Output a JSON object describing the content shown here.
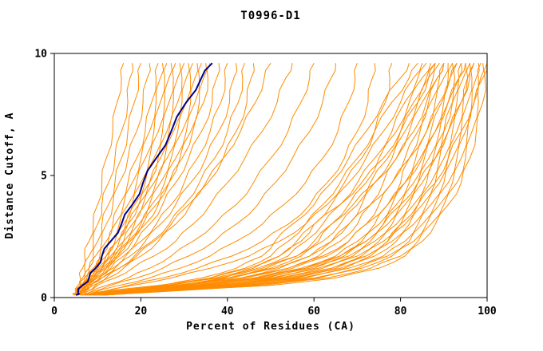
{
  "chart_data": {
    "type": "line",
    "title": "T0996-D1",
    "xlabel": "Percent of Residues (CA)",
    "ylabel": "Distance Cutoff, A",
    "xlim": [
      0,
      100
    ],
    "ylim": [
      0,
      10
    ],
    "xticks": [
      0,
      20,
      40,
      60,
      80,
      100
    ],
    "yticks": [
      0,
      5,
      10
    ],
    "grid": false,
    "legend_position": "none",
    "line_color": "#ff8c00",
    "highlight_color": "#00008b",
    "axis_color": "#000000",
    "y_values": [
      0.1,
      0.2,
      0.5,
      0.8,
      1.2,
      1.7,
      2.3,
      3.0,
      3.8,
      4.7,
      5.7,
      6.8,
      8.0,
      9.0,
      9.6
    ],
    "models_x": [
      [
        4.5,
        5,
        5.5,
        6,
        6.5,
        7,
        8,
        9,
        10,
        11,
        12,
        13.5,
        14.5,
        15.5,
        16
      ],
      [
        4.5,
        5,
        6,
        6.5,
        7,
        8,
        9,
        10,
        11,
        12.5,
        14,
        15.5,
        17,
        17.5,
        18
      ],
      [
        5,
        5.5,
        6,
        7,
        8,
        9,
        10,
        11,
        12.5,
        14,
        15.5,
        17,
        18.5,
        19.5,
        20
      ],
      [
        4.5,
        5,
        6,
        7,
        8,
        9.5,
        11,
        12,
        13.5,
        15,
        17,
        19,
        20.5,
        21.5,
        22
      ],
      [
        5.5,
        6,
        6.5,
        7.5,
        9,
        10.5,
        12,
        13.5,
        15,
        17,
        19,
        21,
        22.5,
        23.5,
        24
      ],
      [
        5,
        5.5,
        6.5,
        8,
        9.5,
        11,
        12.5,
        14,
        16,
        18,
        20,
        22,
        23.5,
        24.5,
        25
      ],
      [
        4.5,
        5,
        6,
        7.5,
        9,
        11,
        13,
        15,
        17,
        19,
        21,
        23,
        24.5,
        25.5,
        26
      ],
      [
        5.5,
        6,
        7,
        8.5,
        10,
        12,
        14,
        16,
        18,
        20,
        22,
        24,
        25.5,
        26.5,
        27
      ],
      [
        5,
        5.5,
        7,
        8.5,
        10.5,
        12.5,
        14.5,
        16.5,
        18.5,
        21,
        23,
        25,
        26.5,
        27.5,
        28
      ],
      [
        5.5,
        6,
        7,
        9,
        11,
        13,
        15,
        17,
        19.5,
        22,
        24,
        26,
        27.5,
        28.5,
        29
      ],
      [
        4.5,
        5,
        6.5,
        8,
        10,
        12,
        14.5,
        17,
        19.5,
        22,
        24.5,
        26.5,
        28.5,
        29.5,
        30
      ],
      [
        5.5,
        6,
        7.5,
        9,
        11,
        13.5,
        16,
        18,
        20.5,
        23,
        25.5,
        27.5,
        29.5,
        30.5,
        31
      ],
      [
        5,
        5.5,
        7,
        9,
        11,
        13.5,
        16,
        18.5,
        21,
        23.5,
        26,
        28.5,
        30.5,
        31.5,
        32
      ],
      [
        5.5,
        6,
        7.5,
        9.5,
        12,
        14.5,
        17,
        19.5,
        22,
        24.5,
        27,
        29.5,
        31.5,
        32.5,
        33
      ],
      [
        5,
        5.5,
        7,
        9,
        11.5,
        14,
        17,
        20,
        22.5,
        25.5,
        28,
        30.5,
        32.5,
        33.5,
        34
      ],
      [
        5.5,
        6,
        8,
        10,
        12.5,
        15,
        18,
        21,
        24,
        26.5,
        29,
        31.5,
        33.5,
        34.5,
        35
      ],
      [
        5.5,
        6,
        7.5,
        9.5,
        12,
        14.5,
        17.5,
        20.5,
        23.5,
        26.5,
        29.5,
        32,
        34.5,
        35.5,
        36
      ],
      [
        6,
        6.5,
        8,
        10,
        13,
        16,
        19,
        22,
        25,
        28,
        31,
        34,
        36.5,
        37.5,
        38
      ],
      [
        5.5,
        6,
        8,
        10.5,
        13.5,
        16.5,
        20,
        23.5,
        27,
        30,
        33,
        36,
        38.5,
        39.5,
        40
      ],
      [
        6,
        6.5,
        8.5,
        11,
        14,
        17.5,
        21,
        24.5,
        28,
        31.5,
        35,
        38,
        40.5,
        41.5,
        42
      ],
      [
        6.5,
        7,
        9,
        12,
        15,
        18.5,
        22.5,
        26.5,
        30,
        33.5,
        37,
        40,
        42.5,
        43.5,
        44
      ],
      [
        6.5,
        7,
        9.5,
        12.5,
        16,
        20,
        24,
        28,
        31.5,
        35.5,
        39,
        42,
        44.5,
        45.5,
        46
      ],
      [
        5.5,
        6,
        8,
        11,
        15,
        19,
        23,
        27,
        31,
        35,
        39,
        43,
        46.5,
        48.5,
        50
      ],
      [
        6,
        7,
        10,
        14,
        18,
        23,
        28,
        32,
        36,
        40,
        44,
        48,
        51.5,
        53.5,
        55
      ],
      [
        6.5,
        8,
        12,
        17,
        22,
        27,
        32,
        37,
        42,
        46,
        50,
        54,
        57,
        59,
        60
      ],
      [
        7,
        8,
        13,
        19,
        25,
        31,
        37,
        42,
        47,
        51,
        55,
        59,
        62,
        64,
        65
      ],
      [
        7,
        9,
        15,
        22,
        29,
        36,
        42,
        48,
        53,
        58,
        62,
        65.5,
        68,
        69.5,
        70
      ],
      [
        7.5,
        10,
        17,
        25,
        33,
        41,
        48,
        54,
        59,
        63,
        67,
        70,
        72.5,
        73.5,
        74
      ],
      [
        8,
        10,
        18,
        27,
        36,
        45,
        52,
        58,
        63,
        67,
        71,
        74,
        76.5,
        77.5,
        78
      ],
      [
        6.5,
        10,
        25,
        34,
        42,
        48,
        51,
        55,
        60,
        64,
        68,
        72,
        76,
        80,
        82
      ],
      [
        7,
        11,
        26,
        36,
        44,
        50,
        54,
        58,
        62,
        66,
        70,
        74,
        78,
        82,
        84
      ],
      [
        6.5,
        10,
        27,
        37,
        46,
        52,
        56,
        60,
        64,
        68,
        72,
        76,
        80,
        83,
        85
      ],
      [
        7.5,
        12,
        28,
        39,
        47,
        54,
        58,
        62,
        66,
        70,
        74,
        78,
        81,
        84,
        86
      ],
      [
        7,
        11,
        29,
        40,
        49,
        56,
        60,
        64,
        68,
        72,
        75,
        79,
        82,
        85,
        87
      ],
      [
        7.5,
        12,
        30,
        41,
        50,
        57,
        62,
        66,
        70,
        73,
        77,
        80,
        83,
        86,
        88
      ],
      [
        8,
        13,
        31,
        43,
        52,
        59,
        64,
        68,
        71,
        74,
        78,
        81,
        84,
        86.5,
        88
      ],
      [
        7.5,
        12,
        32,
        44,
        54,
        61,
        66,
        70,
        73,
        76,
        79,
        82,
        85,
        87.5,
        89
      ],
      [
        8.5,
        14,
        33,
        46,
        55,
        63,
        68,
        72,
        75,
        78,
        81,
        84,
        86.5,
        88.5,
        90
      ],
      [
        8,
        13,
        34,
        47,
        57,
        65,
        70,
        74,
        77,
        80,
        82,
        84.5,
        87,
        89,
        90
      ],
      [
        9,
        15,
        35,
        48,
        58,
        66,
        71,
        75,
        78,
        81,
        83.5,
        86,
        88,
        90,
        91
      ],
      [
        8.5,
        14,
        36,
        49,
        59,
        67,
        72,
        76,
        79,
        82,
        84.5,
        87,
        89.5,
        91,
        92
      ],
      [
        9.5,
        16,
        37,
        50,
        60,
        68,
        73,
        77,
        80,
        83,
        85.5,
        88,
        90,
        91.5,
        92
      ],
      [
        9,
        15,
        38,
        51,
        61,
        69,
        74,
        78,
        81,
        84,
        86.5,
        89,
        91,
        92.5,
        93
      ],
      [
        10,
        17,
        39,
        52,
        62,
        70,
        75,
        79,
        82,
        85,
        87.5,
        90,
        92,
        93.5,
        94
      ],
      [
        9.5,
        16,
        40,
        53,
        64,
        71,
        76,
        80,
        83,
        86,
        88,
        90,
        92,
        93.5,
        94
      ],
      [
        10.5,
        18,
        41,
        55,
        65,
        72,
        77,
        81,
        84,
        87,
        89,
        91,
        93,
        94.5,
        95
      ],
      [
        10,
        17,
        42,
        56,
        66,
        73,
        78,
        82,
        85,
        88,
        90,
        92,
        94,
        95.5,
        96
      ],
      [
        11,
        19,
        43,
        57,
        67,
        74,
        79,
        83,
        86,
        89,
        91,
        93,
        94.5,
        95.5,
        96
      ],
      [
        10.5,
        18,
        44,
        58,
        68,
        76,
        81,
        84,
        87,
        90,
        92,
        94,
        95.5,
        96.5,
        97
      ],
      [
        11.5,
        20,
        45,
        60,
        70,
        77,
        82,
        85,
        88,
        91,
        93,
        95,
        96.5,
        97.5,
        98
      ],
      [
        11,
        19,
        46,
        61,
        71,
        78,
        83,
        86,
        89,
        92,
        94,
        95.5,
        97,
        98,
        98.5
      ],
      [
        12,
        21,
        48,
        63,
        73,
        80,
        84,
        87,
        90,
        93,
        95,
        96.5,
        98,
        98.5,
        99
      ],
      [
        11.5,
        20,
        50,
        65,
        75,
        81,
        85,
        88,
        91,
        94,
        96,
        97.5,
        99,
        99.5,
        100
      ],
      [
        9,
        15,
        38,
        54,
        64,
        72,
        77,
        80,
        84,
        88,
        91,
        94,
        97,
        99,
        100
      ],
      [
        8,
        13,
        33,
        47,
        58,
        66,
        72,
        76,
        80,
        84,
        88,
        91,
        94,
        96,
        97
      ],
      [
        7.5,
        12,
        30,
        44,
        54,
        62,
        68,
        72,
        77,
        81,
        85,
        88,
        91,
        93.5,
        95
      ],
      [
        7,
        11,
        28,
        41,
        51,
        59,
        64,
        68,
        73,
        78,
        82,
        86,
        89,
        91.5,
        93
      ],
      [
        6.5,
        10,
        26,
        38,
        48,
        56,
        61,
        64,
        69,
        74,
        79,
        83,
        86,
        88.5,
        90
      ],
      [
        6,
        9,
        24,
        36,
        45,
        52,
        57,
        60,
        66,
        71,
        76,
        80,
        84,
        86.5,
        88
      ]
    ],
    "highlight_x": [
      5,
      5.5,
      6.5,
      8,
      9.5,
      11,
      13,
      15.5,
      18,
      20.5,
      23.5,
      27,
      30.5,
      34,
      36.5
    ]
  }
}
